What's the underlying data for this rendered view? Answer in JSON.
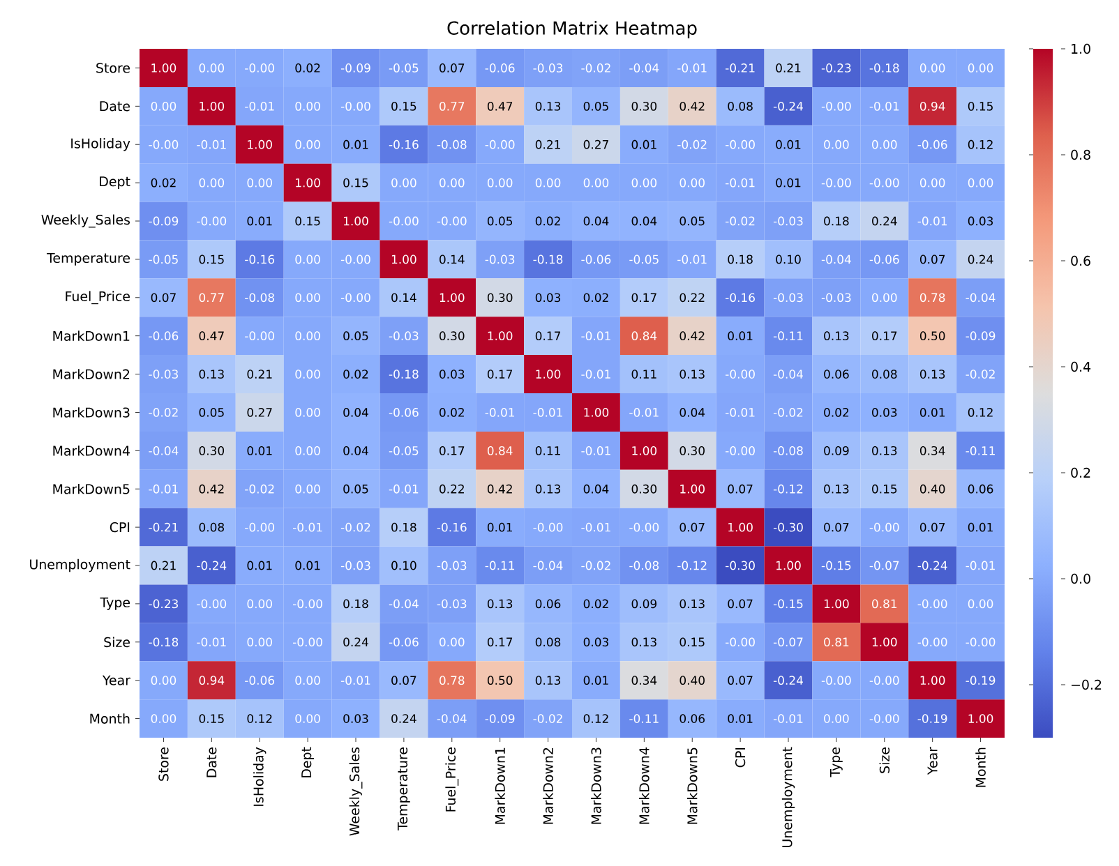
{
  "chart_data": {
    "type": "heatmap",
    "title": "Correlation Matrix Heatmap",
    "categories": [
      "Store",
      "Date",
      "IsHoliday",
      "Dept",
      "Weekly_Sales",
      "Temperature",
      "Fuel_Price",
      "MarkDown1",
      "MarkDown2",
      "MarkDown3",
      "MarkDown4",
      "MarkDown5",
      "CPI",
      "Unemployment",
      "Type",
      "Size",
      "Year",
      "Month"
    ],
    "y_categories": [
      "Store",
      "Date",
      "IsHoliday",
      "Dept",
      "Weekly_Sales",
      "Temperature",
      "Fuel_Price",
      "MarkDown1",
      "MarkDown2",
      "MarkDown3",
      "MarkDown4",
      "MarkDown5",
      "CPI",
      "Unemployment",
      "Type",
      "Size",
      "Year",
      "Month"
    ],
    "cells": [
      [
        1,
        0,
        0,
        0.02,
        -0.09,
        -0.05,
        0.07,
        -0.06,
        -0.03,
        -0.02,
        -0.04,
        -0.01,
        -0.21,
        0.21,
        -0.23,
        -0.18,
        0,
        0
      ],
      [
        0,
        1,
        -0.01,
        0,
        0,
        0.15,
        0.77,
        0.47,
        0.13,
        0.05,
        0.3,
        0.42,
        0.08,
        -0.24,
        0,
        -0.01,
        0.94,
        0.15
      ],
      [
        0,
        -0.01,
        1,
        0,
        0.01,
        -0.16,
        -0.08,
        0,
        0.21,
        0.27,
        0.01,
        -0.02,
        0,
        0.01,
        0,
        0,
        -0.06,
        0.12
      ],
      [
        0.02,
        0,
        0,
        1,
        0.15,
        0,
        0,
        0,
        0,
        0,
        0,
        0,
        -0.01,
        0.01,
        0,
        0,
        0,
        0
      ],
      [
        -0.09,
        0,
        0.01,
        0.15,
        1,
        0,
        0,
        0.05,
        0.02,
        0.04,
        0.04,
        0.05,
        -0.02,
        -0.03,
        0.18,
        0.24,
        -0.01,
        0.03
      ],
      [
        -0.05,
        0.15,
        -0.16,
        0,
        0,
        1,
        0.14,
        -0.03,
        -0.18,
        -0.06,
        -0.05,
        -0.01,
        0.18,
        0.1,
        -0.04,
        -0.06,
        0.07,
        0.24
      ],
      [
        0.07,
        0.77,
        -0.08,
        0,
        0,
        0.14,
        1,
        0.3,
        0.03,
        0.02,
        0.17,
        0.22,
        -0.16,
        -0.03,
        -0.03,
        0,
        0.78,
        -0.04
      ],
      [
        -0.06,
        0.47,
        0,
        0,
        0.05,
        -0.03,
        0.3,
        1,
        0.17,
        -0.01,
        0.84,
        0.42,
        0.01,
        -0.11,
        0.13,
        0.17,
        0.5,
        -0.09
      ],
      [
        -0.03,
        0.13,
        0.21,
        0,
        0.02,
        -0.18,
        0.03,
        0.17,
        1,
        -0.01,
        0.11,
        0.13,
        0,
        -0.04,
        0.06,
        0.08,
        0.13,
        -0.02
      ],
      [
        -0.02,
        0.05,
        0.27,
        0,
        0.04,
        -0.06,
        0.02,
        -0.01,
        -0.01,
        1,
        -0.01,
        0.04,
        -0.01,
        -0.02,
        0.02,
        0.03,
        0.01,
        0.12
      ],
      [
        -0.04,
        0.3,
        0.01,
        0,
        0.04,
        -0.05,
        0.17,
        0.84,
        0.11,
        -0.01,
        1,
        0.3,
        0,
        -0.08,
        0.09,
        0.13,
        0.34,
        -0.11
      ],
      [
        -0.01,
        0.42,
        -0.02,
        0,
        0.05,
        -0.01,
        0.22,
        0.42,
        0.13,
        0.04,
        0.3,
        1,
        0.07,
        -0.12,
        0.13,
        0.15,
        0.4,
        0.06
      ],
      [
        -0.21,
        0.08,
        0,
        -0.01,
        -0.02,
        0.18,
        -0.16,
        0.01,
        0,
        -0.01,
        0,
        0.07,
        1,
        -0.3,
        0.07,
        0,
        0.07,
        0.01
      ],
      [
        0.21,
        -0.24,
        0.01,
        0.01,
        -0.03,
        0.1,
        -0.03,
        -0.11,
        -0.04,
        -0.02,
        -0.08,
        -0.12,
        -0.3,
        1,
        -0.15,
        -0.07,
        -0.24,
        -0.01
      ],
      [
        -0.23,
        0,
        0,
        0,
        0.18,
        -0.04,
        -0.03,
        0.13,
        0.06,
        0.02,
        0.09,
        0.13,
        0.07,
        -0.15,
        1,
        0.81,
        0,
        0
      ],
      [
        -0.18,
        -0.01,
        0,
        0,
        0.24,
        -0.06,
        0,
        0.17,
        0.08,
        0.03,
        0.13,
        0.15,
        0,
        -0.07,
        0.81,
        1,
        0,
        0
      ],
      [
        0,
        0.94,
        -0.06,
        0,
        -0.01,
        0.07,
        0.78,
        0.5,
        0.13,
        0.01,
        0.34,
        0.4,
        0.07,
        -0.24,
        0,
        0,
        1,
        -0.19
      ],
      [
        0,
        0.15,
        0.12,
        0,
        0.03,
        0.24,
        -0.04,
        -0.09,
        -0.02,
        0.12,
        -0.11,
        0.06,
        0.01,
        -0.01,
        0,
        0,
        -0.19,
        1
      ]
    ],
    "cell_labels": [
      [
        "1.00",
        "0.00",
        "-0.00",
        "0.02",
        "-0.09",
        "-0.05",
        "0.07",
        "-0.06",
        "-0.03",
        "-0.02",
        "-0.04",
        "-0.01",
        "-0.21",
        "0.21",
        "-0.23",
        "-0.18",
        "0.00",
        "0.00"
      ],
      [
        "0.00",
        "1.00",
        "-0.01",
        "0.00",
        "-0.00",
        "0.15",
        "0.77",
        "0.47",
        "0.13",
        "0.05",
        "0.30",
        "0.42",
        "0.08",
        "-0.24",
        "-0.00",
        "-0.01",
        "0.94",
        "0.15"
      ],
      [
        "-0.00",
        "-0.01",
        "1.00",
        "0.00",
        "0.01",
        "-0.16",
        "-0.08",
        "-0.00",
        "0.21",
        "0.27",
        "0.01",
        "-0.02",
        "-0.00",
        "0.01",
        "0.00",
        "0.00",
        "-0.06",
        "0.12"
      ],
      [
        "0.02",
        "0.00",
        "0.00",
        "1.00",
        "0.15",
        "0.00",
        "0.00",
        "0.00",
        "0.00",
        "0.00",
        "0.00",
        "0.00",
        "-0.01",
        "0.01",
        "-0.00",
        "-0.00",
        "0.00",
        "0.00"
      ],
      [
        "-0.09",
        "-0.00",
        "0.01",
        "0.15",
        "1.00",
        "-0.00",
        "-0.00",
        "0.05",
        "0.02",
        "0.04",
        "0.04",
        "0.05",
        "-0.02",
        "-0.03",
        "0.18",
        "0.24",
        "-0.01",
        "0.03"
      ],
      [
        "-0.05",
        "0.15",
        "-0.16",
        "0.00",
        "-0.00",
        "1.00",
        "0.14",
        "-0.03",
        "-0.18",
        "-0.06",
        "-0.05",
        "-0.01",
        "0.18",
        "0.10",
        "-0.04",
        "-0.06",
        "0.07",
        "0.24"
      ],
      [
        "0.07",
        "0.77",
        "-0.08",
        "0.00",
        "-0.00",
        "0.14",
        "1.00",
        "0.30",
        "0.03",
        "0.02",
        "0.17",
        "0.22",
        "-0.16",
        "-0.03",
        "-0.03",
        "0.00",
        "0.78",
        "-0.04"
      ],
      [
        "-0.06",
        "0.47",
        "-0.00",
        "0.00",
        "0.05",
        "-0.03",
        "0.30",
        "1.00",
        "0.17",
        "-0.01",
        "0.84",
        "0.42",
        "0.01",
        "-0.11",
        "0.13",
        "0.17",
        "0.50",
        "-0.09"
      ],
      [
        "-0.03",
        "0.13",
        "0.21",
        "0.00",
        "0.02",
        "-0.18",
        "0.03",
        "0.17",
        "1.00",
        "-0.01",
        "0.11",
        "0.13",
        "-0.00",
        "-0.04",
        "0.06",
        "0.08",
        "0.13",
        "-0.02"
      ],
      [
        "-0.02",
        "0.05",
        "0.27",
        "0.00",
        "0.04",
        "-0.06",
        "0.02",
        "-0.01",
        "-0.01",
        "1.00",
        "-0.01",
        "0.04",
        "-0.01",
        "-0.02",
        "0.02",
        "0.03",
        "0.01",
        "0.12"
      ],
      [
        "-0.04",
        "0.30",
        "0.01",
        "0.00",
        "0.04",
        "-0.05",
        "0.17",
        "0.84",
        "0.11",
        "-0.01",
        "1.00",
        "0.30",
        "-0.00",
        "-0.08",
        "0.09",
        "0.13",
        "0.34",
        "-0.11"
      ],
      [
        "-0.01",
        "0.42",
        "-0.02",
        "0.00",
        "0.05",
        "-0.01",
        "0.22",
        "0.42",
        "0.13",
        "0.04",
        "0.30",
        "1.00",
        "0.07",
        "-0.12",
        "0.13",
        "0.15",
        "0.40",
        "0.06"
      ],
      [
        "-0.21",
        "0.08",
        "-0.00",
        "-0.01",
        "-0.02",
        "0.18",
        "-0.16",
        "0.01",
        "-0.00",
        "-0.01",
        "-0.00",
        "0.07",
        "1.00",
        "-0.30",
        "0.07",
        "-0.00",
        "0.07",
        "0.01"
      ],
      [
        "0.21",
        "-0.24",
        "0.01",
        "0.01",
        "-0.03",
        "0.10",
        "-0.03",
        "-0.11",
        "-0.04",
        "-0.02",
        "-0.08",
        "-0.12",
        "-0.30",
        "1.00",
        "-0.15",
        "-0.07",
        "-0.24",
        "-0.01"
      ],
      [
        "-0.23",
        "-0.00",
        "0.00",
        "-0.00",
        "0.18",
        "-0.04",
        "-0.03",
        "0.13",
        "0.06",
        "0.02",
        "0.09",
        "0.13",
        "0.07",
        "-0.15",
        "1.00",
        "0.81",
        "-0.00",
        "0.00"
      ],
      [
        "-0.18",
        "-0.01",
        "0.00",
        "-0.00",
        "0.24",
        "-0.06",
        "0.00",
        "0.17",
        "0.08",
        "0.03",
        "0.13",
        "0.15",
        "-0.00",
        "-0.07",
        "0.81",
        "1.00",
        "-0.00",
        "-0.00"
      ],
      [
        "0.00",
        "0.94",
        "-0.06",
        "0.00",
        "-0.01",
        "0.07",
        "0.78",
        "0.50",
        "0.13",
        "0.01",
        "0.34",
        "0.40",
        "0.07",
        "-0.24",
        "-0.00",
        "-0.00",
        "1.00",
        "-0.19"
      ],
      [
        "0.00",
        "0.15",
        "0.12",
        "0.00",
        "0.03",
        "0.24",
        "-0.04",
        "-0.09",
        "-0.02",
        "0.12",
        "-0.11",
        "0.06",
        "0.01",
        "-0.01",
        "0.00",
        "-0.00",
        "-0.19",
        "1.00"
      ]
    ],
    "clim": [
      -0.3,
      1.0
    ],
    "cticks": [
      {
        "value": -0.2,
        "label": "−0.2"
      },
      {
        "value": 0,
        "label": "0.0"
      },
      {
        "value": 0.2,
        "label": "0.2"
      },
      {
        "value": 0.4,
        "label": "0.4"
      },
      {
        "value": 0.6,
        "label": "0.6"
      },
      {
        "value": 0.8,
        "label": "0.8"
      },
      {
        "value": 1.0,
        "label": "1.0"
      }
    ]
  }
}
